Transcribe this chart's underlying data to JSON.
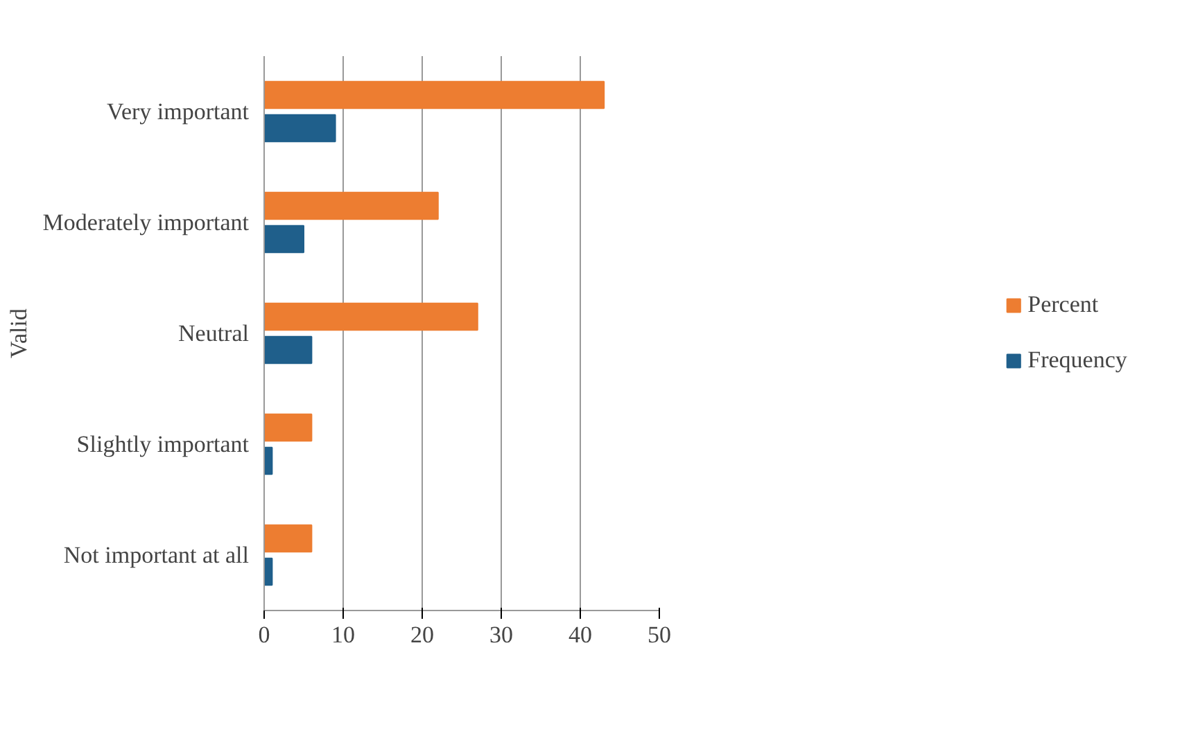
{
  "chart_data": {
    "type": "bar",
    "orientation": "horizontal",
    "ylabel": "Valid",
    "categories": [
      "Very important",
      "Moderately important",
      "Neutral",
      "Slightly important",
      "Not important at all"
    ],
    "series": [
      {
        "name": "Percent",
        "color": "#ed7d31",
        "values": [
          43,
          22,
          27,
          6,
          6
        ]
      },
      {
        "name": "Frequency",
        "color": "#1f5f8b",
        "values": [
          9,
          5,
          6,
          1,
          1
        ]
      }
    ],
    "xlim": [
      0,
      50
    ],
    "xticks": [
      0,
      10,
      20,
      30,
      40,
      50
    ],
    "grid": "x",
    "legend": "right"
  }
}
